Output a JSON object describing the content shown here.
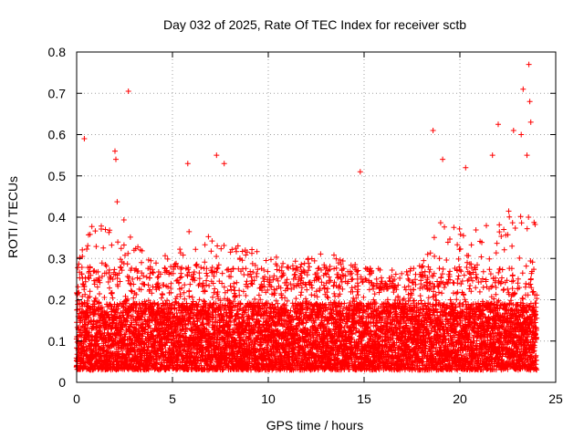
{
  "chart_data": {
    "type": "scatter",
    "title": "Day 032 of 2025, Rate Of TEC Index for receiver sctb",
    "xlabel": "GPS time / hours",
    "ylabel": "ROTI / TECUs",
    "xlim": [
      0,
      25
    ],
    "ylim": [
      0,
      0.8
    ],
    "x_ticks": [
      "0",
      "5",
      "10",
      "15",
      "20",
      "25"
    ],
    "y_ticks": [
      "0",
      "0.1",
      "0.2",
      "0.3",
      "0.4",
      "0.5",
      "0.6",
      "0.7",
      "0.8"
    ],
    "grid": true,
    "legend": "none",
    "marker": "plus",
    "color": "#ff0000",
    "x_extent": [
      0,
      24
    ],
    "sample_interval_hours": 0.02,
    "typical_range": [
      0.03,
      0.28
    ],
    "envelope": [
      [
        0,
        0.3
      ],
      [
        1,
        0.4
      ],
      [
        2,
        0.45
      ],
      [
        3,
        0.35
      ],
      [
        4,
        0.3
      ],
      [
        5,
        0.32
      ],
      [
        6,
        0.38
      ],
      [
        7,
        0.35
      ],
      [
        8,
        0.35
      ],
      [
        9,
        0.33
      ],
      [
        10,
        0.32
      ],
      [
        11,
        0.3
      ],
      [
        12,
        0.3
      ],
      [
        13,
        0.32
      ],
      [
        14,
        0.3
      ],
      [
        15,
        0.28
      ],
      [
        16,
        0.25
      ],
      [
        17,
        0.25
      ],
      [
        18,
        0.3
      ],
      [
        19,
        0.4
      ],
      [
        20,
        0.38
      ],
      [
        21,
        0.38
      ],
      [
        22,
        0.4
      ],
      [
        23,
        0.45
      ],
      [
        24,
        0.38
      ]
    ],
    "outliers": [
      [
        0.4,
        0.59
      ],
      [
        2.0,
        0.56
      ],
      [
        2.05,
        0.54
      ],
      [
        2.7,
        0.705
      ],
      [
        5.8,
        0.53
      ],
      [
        7.3,
        0.55
      ],
      [
        7.7,
        0.53
      ],
      [
        14.8,
        0.51
      ],
      [
        18.6,
        0.61
      ],
      [
        19.1,
        0.54
      ],
      [
        20.3,
        0.52
      ],
      [
        21.7,
        0.55
      ],
      [
        22.0,
        0.625
      ],
      [
        22.8,
        0.61
      ],
      [
        23.2,
        0.6
      ],
      [
        23.3,
        0.71
      ],
      [
        23.6,
        0.77
      ],
      [
        23.65,
        0.68
      ],
      [
        23.7,
        0.63
      ],
      [
        23.5,
        0.55
      ]
    ]
  }
}
